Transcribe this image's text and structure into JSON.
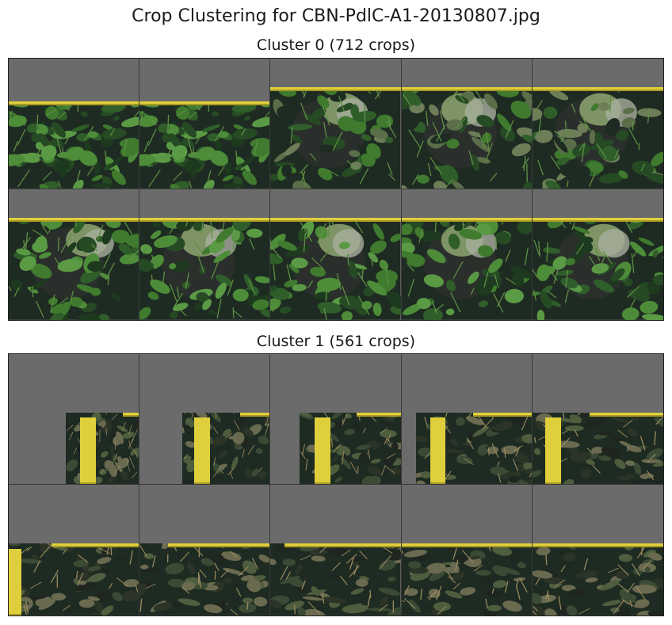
{
  "figure": {
    "title": "Crop Clustering for CBN-PdlC-A1-20130807.jpg"
  },
  "clusters": [
    {
      "title": "Cluster 0 (712 crops)"
    },
    {
      "title": "Cluster 1 (561 crops)"
    }
  ],
  "colors": {
    "padding_gray": "#6b6b6b",
    "foliage_dark": "#1c2a1f",
    "foliage_green": "#3f7a2e",
    "lichen": "#8aa070",
    "ruler_yellow": "#e0cf3c"
  }
}
